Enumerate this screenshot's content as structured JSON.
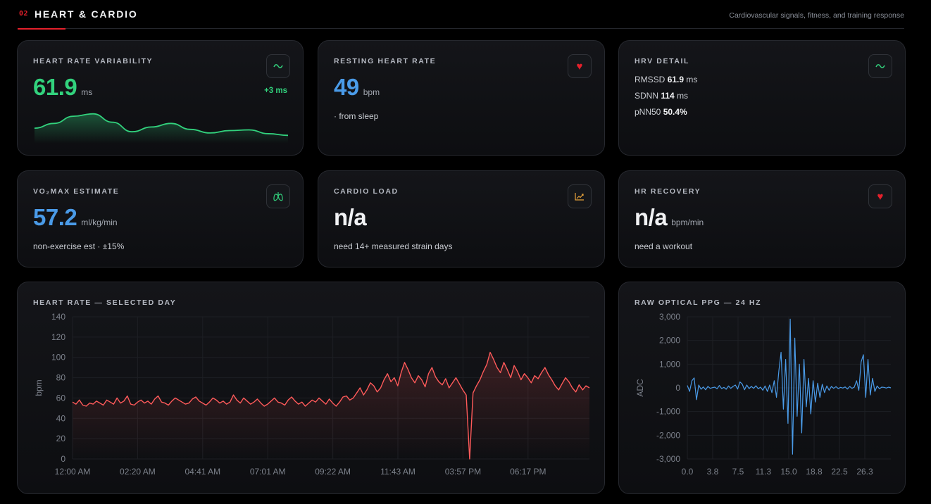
{
  "section": {
    "number": "02",
    "title": "HEART & CARDIO",
    "subtitle": "Cardiovascular signals, fitness, and training response",
    "accent_color": "#e5202b"
  },
  "cards": {
    "hrv": {
      "label": "HEART RATE VARIABILITY",
      "value": "61.9",
      "unit": "ms",
      "delta": "+3 ms",
      "icon": "wave-icon",
      "color": "#32d27d",
      "sparkline": [
        0.35,
        0.55,
        0.85,
        0.95,
        0.6,
        0.2,
        0.4,
        0.55,
        0.3,
        0.15,
        0.25,
        0.28,
        0.12,
        0.05
      ]
    },
    "rhr": {
      "label": "RESTING HEART RATE",
      "value": "49",
      "unit": "bpm",
      "note": "· from sleep",
      "icon": "heart-icon",
      "color": "#4a9be8"
    },
    "hrv_detail": {
      "label": "HRV DETAIL",
      "icon": "wave-icon",
      "rmssd_label": "RMSSD",
      "rmssd_value": "61.9",
      "rmssd_unit": "ms",
      "sdnn_label": "SDNN",
      "sdnn_value": "114",
      "sdnn_unit": "ms",
      "pnn50_label": "pNN50",
      "pnn50_value": "50.4%"
    },
    "vo2max": {
      "label": "VO₂MAX ESTIMATE",
      "value": "57.2",
      "unit": "ml/kg/min",
      "note": "non-exercise est · ±15%",
      "icon": "lungs-icon",
      "color": "#4a9be8"
    },
    "cardio_load": {
      "label": "CARDIO LOAD",
      "value": "n/a",
      "note": "need 14+ measured strain days",
      "icon": "trend-chart-icon"
    },
    "hr_recovery": {
      "label": "HR RECOVERY",
      "value": "n/a",
      "unit": "bpm/min",
      "note": "need a workout",
      "icon": "heart-icon"
    }
  },
  "chart_data": [
    {
      "type": "line",
      "title": "HEART RATE — SELECTED DAY",
      "ylabel": "bpm",
      "ylim": [
        0,
        140
      ],
      "yticks": [
        0,
        20,
        40,
        60,
        80,
        100,
        120,
        140
      ],
      "xtick_labels": [
        "12:00 AM",
        "02:20 AM",
        "04:41 AM",
        "07:01 AM",
        "09:22 AM",
        "11:43 AM",
        "03:57 PM",
        "06:17 PM"
      ],
      "color": "#ff5a5a",
      "grid": true,
      "series": [
        {
          "values": [
            56,
            54,
            58,
            53,
            52,
            55,
            54,
            57,
            55,
            53,
            58,
            56,
            54,
            60,
            55,
            57,
            62,
            54,
            53,
            56,
            58,
            55,
            57,
            54,
            59,
            62,
            56,
            55,
            53,
            57,
            60,
            58,
            56,
            54,
            55,
            59,
            61,
            57,
            55,
            53,
            56,
            60,
            58,
            55,
            57,
            54,
            56,
            63,
            58,
            55,
            60,
            57,
            54,
            56,
            59,
            55,
            52,
            54,
            57,
            60,
            56,
            55,
            53,
            58,
            61,
            57,
            54,
            56,
            52,
            55,
            58,
            56,
            60,
            57,
            54,
            59,
            55,
            52,
            56,
            61,
            62,
            58,
            60,
            65,
            70,
            63,
            68,
            75,
            72,
            66,
            70,
            78,
            84,
            76,
            80,
            72,
            85,
            95,
            88,
            80,
            75,
            82,
            78,
            71,
            84,
            90,
            81,
            76,
            73,
            79,
            70,
            75,
            80,
            74,
            68,
            63,
            0,
            65,
            72,
            78,
            86,
            93,
            105,
            98,
            90,
            85,
            95,
            88,
            80,
            92,
            86,
            78,
            84,
            80,
            75,
            82,
            79,
            85,
            90,
            83,
            78,
            72,
            68,
            74,
            80,
            76,
            70,
            66,
            73,
            68,
            72,
            70
          ]
        }
      ]
    },
    {
      "type": "line",
      "title": "RAW OPTICAL PPG — 24 HZ",
      "ylabel": "ADC",
      "ylim": [
        -3000,
        3000
      ],
      "yticks": [
        -3000,
        -2000,
        -1000,
        0,
        1000,
        2000,
        3000
      ],
      "ytick_labels": [
        "-3,000",
        "-2,000",
        "-1,000",
        "0",
        "1,000",
        "2,000",
        "3,000"
      ],
      "xtick_labels": [
        "0.0",
        "3.8",
        "7.5",
        "11.3",
        "15.0",
        "18.8",
        "22.5",
        "26.3"
      ],
      "xlim": [
        0,
        30
      ],
      "color": "#4a9be8",
      "grid": true,
      "series": [
        {
          "values": [
            100,
            -150,
            300,
            420,
            -500,
            120,
            -60,
            40,
            -80,
            60,
            -20,
            10,
            30,
            -40,
            100,
            -30,
            20,
            -60,
            80,
            -20,
            60,
            120,
            -50,
            250,
            160,
            -80,
            120,
            -30,
            60,
            -20,
            90,
            -40,
            30,
            -100,
            80,
            -150,
            120,
            -200,
            300,
            -400,
            700,
            1500,
            -900,
            1200,
            -1500,
            2900,
            -2800,
            2100,
            -1200,
            1000,
            -1900,
            1200,
            -800,
            400,
            -1100,
            300,
            -600,
            200,
            -400,
            150,
            -200,
            80,
            -100,
            60,
            -20,
            50,
            -30,
            20,
            -10,
            40,
            -50,
            60,
            -20,
            30,
            300,
            -100,
            1100,
            1400,
            -400,
            1200,
            -300,
            400,
            -150,
            80,
            -40,
            30,
            20,
            -10,
            30,
            0
          ]
        }
      ]
    }
  ]
}
